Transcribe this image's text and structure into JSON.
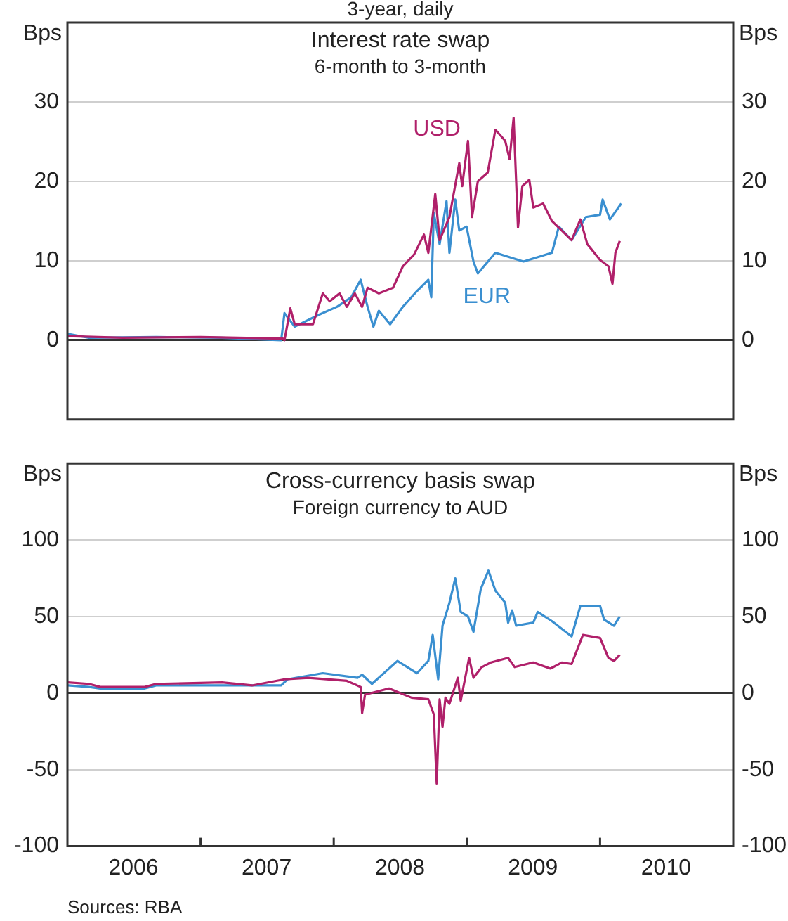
{
  "chart_data": [
    {
      "type": "line",
      "title": "Interest rate swap",
      "subtitle": "6-month to 3-month",
      "ylabel": "Bps",
      "y2label": "Bps",
      "annotations": [
        "3-year, daily"
      ],
      "xlim": [
        "2006-01-01",
        "2011-01-01"
      ],
      "ylim": [
        -10,
        40
      ],
      "yticks": [
        0,
        10,
        20,
        30
      ],
      "y2lim": [
        -10,
        40
      ],
      "y2ticks": [
        0,
        10,
        20,
        30
      ],
      "grid": "y",
      "legend": false,
      "tick_labels": "y",
      "series": [
        {
          "name": "USD",
          "color": "#b0206a",
          "x": [
            "2006-01-02",
            "2006-06-01",
            "2007-01-01",
            "2007-08-15",
            "2007-08-19",
            "2007-09-04",
            "2007-09-16",
            "2007-11-05",
            "2007-12-02",
            "2007-12-21",
            "2008-01-17",
            "2008-02-06",
            "2008-02-28",
            "2008-03-19",
            "2008-04-03",
            "2008-05-04",
            "2008-06-12",
            "2008-07-09",
            "2008-08-09",
            "2008-09-05",
            "2008-09-17",
            "2008-10-06",
            "2008-10-18",
            "2008-11-14",
            "2008-12-11",
            "2008-12-19",
            "2009-01-04",
            "2009-01-15",
            "2009-01-31",
            "2009-02-27",
            "2009-03-20",
            "2009-04-16",
            "2009-04-28",
            "2009-05-09",
            "2009-05-21",
            "2009-06-02",
            "2009-06-21",
            "2009-07-02",
            "2009-07-29",
            "2009-08-22",
            "2009-09-18",
            "2009-10-15",
            "2009-11-08",
            "2009-11-27",
            "2010-01-01",
            "2010-01-24",
            "2010-02-04",
            "2010-02-12",
            "2010-02-24"
          ],
          "values": [
            0.5,
            0.3,
            0.4,
            0.2,
            0,
            4.0,
            2.0,
            2.0,
            5.9,
            4.9,
            5.9,
            4.2,
            5.9,
            4.2,
            6.6,
            5.9,
            6.6,
            9.3,
            10.8,
            13.3,
            11.0,
            18.4,
            12.6,
            15.5,
            22.3,
            19.4,
            25.1,
            15.5,
            20.0,
            21.1,
            26.5,
            25.1,
            22.8,
            28.0,
            14.2,
            19.4,
            20.2,
            16.7,
            17.2,
            15.0,
            13.8,
            12.6,
            15.2,
            12.1,
            10.1,
            9.3,
            7.1,
            11.0,
            12.5
          ]
        },
        {
          "name": "EUR",
          "color": "#3a8fd0",
          "x": [
            "2006-01-02",
            "2006-03-01",
            "2006-09-01",
            "2007-03-01",
            "2007-08-10",
            "2007-08-19",
            "2007-09-16",
            "2007-11-21",
            "2008-01-10",
            "2008-02-18",
            "2008-03-15",
            "2008-04-03",
            "2008-04-19",
            "2008-05-04",
            "2008-06-04",
            "2008-07-09",
            "2008-08-17",
            "2008-09-17",
            "2008-09-25",
            "2008-10-02",
            "2008-10-18",
            "2008-11-06",
            "2008-11-14",
            "2008-11-30",
            "2008-12-11",
            "2008-12-31",
            "2009-01-19",
            "2009-01-31",
            "2009-03-20",
            "2009-06-05",
            "2009-08-22",
            "2009-09-10",
            "2009-10-15",
            "2009-11-23",
            "2010-01-01",
            "2010-01-08",
            "2010-01-28",
            "2010-02-28"
          ],
          "values": [
            0.8,
            0.3,
            0.4,
            0.3,
            0,
            3.4,
            1.7,
            3.2,
            4.2,
            5.4,
            7.6,
            4.2,
            1.7,
            3.7,
            2.0,
            4.2,
            6.2,
            7.6,
            5.4,
            16.0,
            12.1,
            17.5,
            11.0,
            17.7,
            13.8,
            14.3,
            9.9,
            8.4,
            11.0,
            9.9,
            11.0,
            14.3,
            12.6,
            15.5,
            15.8,
            17.7,
            15.2,
            17.2
          ]
        }
      ]
    },
    {
      "type": "line",
      "title": "Cross-currency basis swap",
      "subtitle": "Foreign currency to AUD",
      "ylabel": "Bps",
      "y2label": "Bps",
      "annotations": [
        "Sources: RBA"
      ],
      "xlim": [
        "2006-01-01",
        "2011-01-01"
      ],
      "xticks": [
        {
          "value": "2006-07-01",
          "label": "2006"
        },
        {
          "value": "2007-01-01",
          "label": null
        },
        {
          "value": "2007-07-01",
          "label": "2007"
        },
        {
          "value": "2008-01-01",
          "label": null
        },
        {
          "value": "2008-07-01",
          "label": "2008"
        },
        {
          "value": "2009-01-01",
          "label": null
        },
        {
          "value": "2009-07-01",
          "label": "2009"
        },
        {
          "value": "2010-01-01",
          "label": null
        },
        {
          "value": "2010-07-01",
          "label": "2010"
        }
      ],
      "ylim": [
        -100,
        150
      ],
      "yticks": [
        -100,
        -50,
        0,
        50,
        100
      ],
      "y2lim": [
        -100,
        150
      ],
      "y2ticks": [
        -100,
        -50,
        0,
        50,
        100
      ],
      "grid": "y",
      "legend": false,
      "series": [
        {
          "color": "#b0206a",
          "x": [
            "2006-01-02",
            "2006-03-01",
            "2006-04-01",
            "2006-08-01",
            "2006-09-01",
            "2007-03-01",
            "2007-05-22",
            "2007-08-19",
            "2007-10-24",
            "2008-02-06",
            "2008-03-15",
            "2008-03-19",
            "2008-03-27",
            "2008-06-01",
            "2008-08-02",
            "2008-09-17",
            "2008-10-02",
            "2008-10-10",
            "2008-10-18",
            "2008-10-26",
            "2008-11-03",
            "2008-11-14",
            "2008-12-07",
            "2008-12-15",
            "2009-01-07",
            "2009-01-19",
            "2009-02-11",
            "2009-03-08",
            "2009-04-24",
            "2009-05-12",
            "2009-07-02",
            "2009-08-18",
            "2009-09-18",
            "2009-10-15",
            "2009-11-15",
            "2010-01-01",
            "2010-01-24",
            "2010-02-08",
            "2010-02-24"
          ],
          "values": [
            7,
            6,
            4,
            4,
            6,
            7,
            5,
            9,
            10,
            8,
            4,
            -13,
            -1,
            3,
            -3,
            -4,
            -14,
            -59,
            -4,
            -22,
            -3,
            -7,
            10,
            -5,
            23,
            10,
            17,
            20,
            23,
            17,
            20,
            16,
            20,
            19,
            38,
            36,
            23,
            21,
            25
          ]
        },
        {
          "color": "#3a8fd0",
          "x": [
            "2006-01-02",
            "2006-03-01",
            "2006-04-01",
            "2006-08-01",
            "2006-09-01",
            "2007-03-01",
            "2007-05-22",
            "2007-08-10",
            "2007-08-27",
            "2007-12-02",
            "2008-03-07",
            "2008-03-19",
            "2008-04-15",
            "2008-06-24",
            "2008-08-17",
            "2008-09-17",
            "2008-09-29",
            "2008-10-14",
            "2008-10-26",
            "2008-11-14",
            "2008-11-30",
            "2008-12-15",
            "2009-01-04",
            "2009-01-19",
            "2009-02-08",
            "2009-03-01",
            "2009-03-20",
            "2009-04-16",
            "2009-04-24",
            "2009-05-05",
            "2009-05-16",
            "2009-07-02",
            "2009-07-14",
            "2009-08-22",
            "2009-10-15",
            "2009-11-08",
            "2010-01-01",
            "2010-01-12",
            "2010-02-08",
            "2010-02-24"
          ],
          "values": [
            5,
            4,
            3,
            3,
            5,
            5,
            5,
            5,
            9,
            13,
            10,
            12,
            6,
            21,
            13,
            21,
            38,
            9,
            44,
            59,
            75,
            53,
            50,
            40,
            68,
            80,
            67,
            59,
            46,
            54,
            44,
            46,
            53,
            47,
            37,
            57,
            57,
            48,
            44,
            50
          ]
        }
      ]
    }
  ]
}
